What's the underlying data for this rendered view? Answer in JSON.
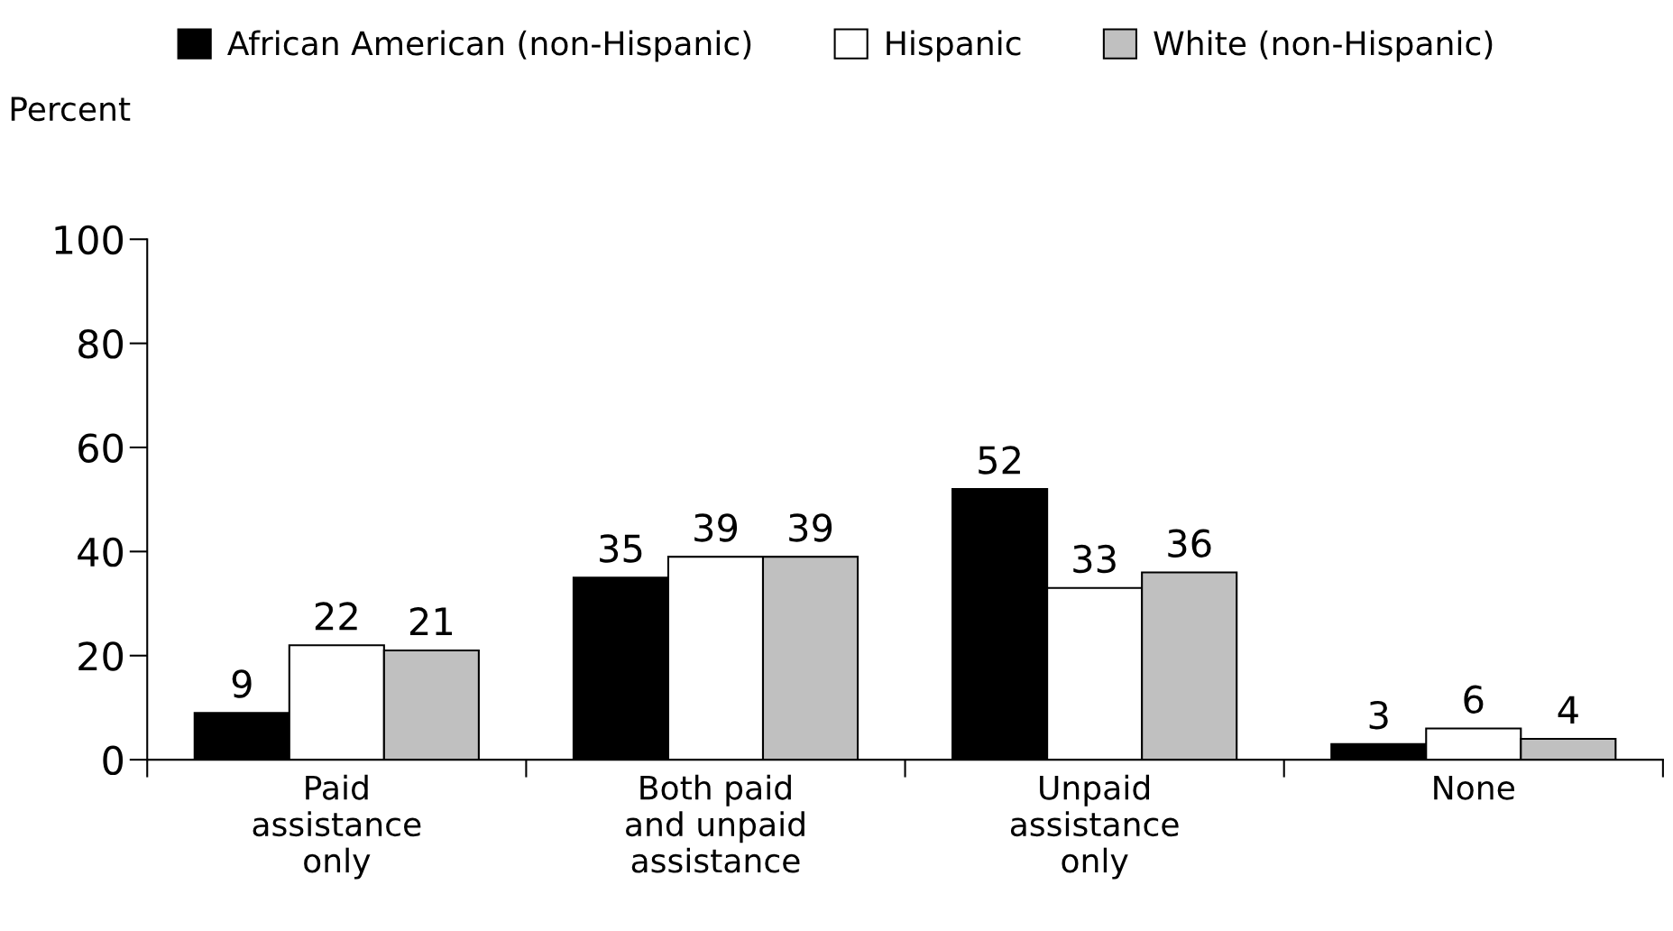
{
  "chart_data": {
    "type": "bar",
    "ylabel": "Percent",
    "categories": [
      "Paid\nassistance\nonly",
      "Both paid\nand unpaid\nassistance",
      "Unpaid\nassistance\nonly",
      "None"
    ],
    "series": [
      {
        "name": "African American (non-Hispanic)",
        "color": "#000000",
        "values": [
          9,
          35,
          52,
          3
        ]
      },
      {
        "name": "Hispanic",
        "color": "#ffffff",
        "values": [
          22,
          39,
          33,
          6
        ]
      },
      {
        "name": "White (non-Hispanic)",
        "color": "#c0c0c0",
        "values": [
          21,
          39,
          36,
          4
        ]
      }
    ],
    "ylim": [
      0,
      100
    ],
    "yticks": [
      0,
      20,
      40,
      60,
      80,
      100
    ],
    "data_labels": true,
    "legend": "top",
    "grid": false
  }
}
